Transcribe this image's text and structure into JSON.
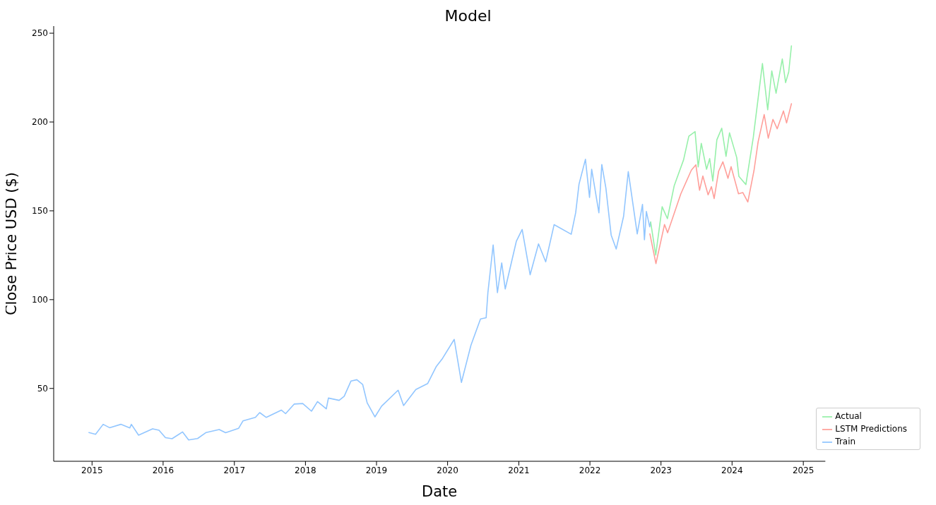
{
  "chart_data": {
    "type": "line",
    "title": "Model",
    "xlabel": "Date",
    "ylabel": "Close Price USD ($)",
    "xlim": [
      "2014-06-18",
      "2025-04-24"
    ],
    "ylim": [
      9,
      254
    ],
    "xticks": [
      "2015",
      "2016",
      "2017",
      "2018",
      "2019",
      "2020",
      "2021",
      "2022",
      "2023",
      "2024",
      "2025"
    ],
    "yticks": [
      50,
      100,
      150,
      200,
      250
    ],
    "grid": false,
    "legend": "bottom right",
    "marker": "none",
    "line_style": "solid",
    "series": [
      {
        "name": "Train",
        "color": "#92c6ff",
        "x": [
          "2014-12-16",
          "2015-01-19",
          "2015-02-27",
          "2015-04-01",
          "2015-05-29",
          "2015-07-14",
          "2015-07-22",
          "2015-08-28",
          "2015-11-08",
          "2015-12-11",
          "2016-01-13",
          "2016-02-16",
          "2016-04-10",
          "2016-05-11",
          "2016-06-26",
          "2016-08-09",
          "2016-10-15",
          "2016-11-17",
          "2017-01-23",
          "2017-02-14",
          "2017-04-19",
          "2017-05-11",
          "2017-06-14",
          "2017-08-30",
          "2017-09-21",
          "2017-11-04",
          "2017-12-18",
          "2018-02-01",
          "2018-03-04",
          "2018-04-18",
          "2018-04-29",
          "2018-06-23",
          "2018-07-19",
          "2018-08-23",
          "2018-09-22",
          "2018-10-22",
          "2018-11-14",
          "2018-12-24",
          "2019-01-27",
          "2019-04-22",
          "2019-05-20",
          "2019-07-22",
          "2019-09-21",
          "2019-11-03",
          "2019-12-06",
          "2020-02-04",
          "2020-03-12",
          "2020-04-30",
          "2020-06-18",
          "2020-07-17",
          "2020-07-26",
          "2020-08-22",
          "2020-09-13",
          "2020-10-05",
          "2020-10-23",
          "2020-12-19",
          "2021-01-18",
          "2021-02-28",
          "2021-04-12",
          "2021-05-19",
          "2021-07-01",
          "2021-09-27",
          "2021-10-20",
          "2021-11-06",
          "2021-12-09",
          "2021-12-30",
          "2022-01-10",
          "2022-02-16",
          "2022-03-03",
          "2022-03-24",
          "2022-04-20",
          "2022-05-16",
          "2022-06-23",
          "2022-07-17",
          "2022-09-01",
          "2022-09-28",
          "2022-10-08",
          "2022-10-18",
          "2022-11-04",
          "2022-11-09"
        ],
        "values": [
          25.2,
          24.2,
          29.8,
          27.9,
          29.8,
          27.8,
          29.8,
          23.7,
          27.3,
          26.5,
          22.3,
          21.7,
          25.5,
          21.0,
          21.8,
          25.2,
          26.9,
          25.1,
          27.6,
          31.7,
          33.7,
          36.4,
          33.7,
          37.8,
          35.8,
          41.2,
          41.5,
          37.2,
          42.6,
          38.5,
          44.6,
          43.3,
          45.6,
          54.2,
          54.9,
          52.2,
          41.9,
          34.0,
          40.0,
          49.0,
          40.4,
          49.4,
          52.8,
          62.2,
          66.9,
          77.6,
          53.4,
          74.3,
          89.1,
          89.8,
          103.9,
          130.8,
          103.9,
          120.7,
          106.0,
          132.8,
          139.5,
          114.0,
          131.4,
          121.3,
          142.2,
          136.8,
          149.0,
          165.0,
          179.0,
          157.5,
          173.4,
          148.9,
          176.1,
          162.8,
          136.4,
          128.5,
          147.0,
          172.1,
          137.0,
          153.6,
          133.7,
          149.6,
          141.0,
          143.7
        ]
      },
      {
        "name": "Actual",
        "color": "#97f0aa",
        "x": [
          "2022-11-09",
          "2022-12-05",
          "2023-01-07",
          "2023-02-03",
          "2023-03-10",
          "2023-04-27",
          "2023-05-24",
          "2023-06-25",
          "2023-07-11",
          "2023-07-27",
          "2023-08-23",
          "2023-09-08",
          "2023-09-24",
          "2023-10-15",
          "2023-11-09",
          "2023-12-01",
          "2023-12-19",
          "2024-01-25",
          "2024-02-05",
          "2024-03-12",
          "2024-04-19",
          "2024-06-05",
          "2024-07-02",
          "2024-07-23",
          "2024-08-14",
          "2024-09-15",
          "2024-10-02",
          "2024-10-18",
          "2024-11-01"
        ],
        "values": [
          143.7,
          125.1,
          152.3,
          145.6,
          164.2,
          178.7,
          192.0,
          194.6,
          174.7,
          188.0,
          173.4,
          179.4,
          166.8,
          190.0,
          196.5,
          180.7,
          193.9,
          180.0,
          169.4,
          164.8,
          191.3,
          232.9,
          206.9,
          228.8,
          216.2,
          235.5,
          222.2,
          228.2,
          242.9
        ]
      },
      {
        "name": "LSTM Predictions",
        "color": "#ff9f9a",
        "x": [
          "2022-11-05",
          "2022-12-06",
          "2023-01-19",
          "2023-02-04",
          "2023-04-13",
          "2023-06-06",
          "2023-06-29",
          "2023-07-18",
          "2023-08-04",
          "2023-08-31",
          "2023-09-17",
          "2023-10-01",
          "2023-10-24",
          "2023-11-15",
          "2023-12-11",
          "2023-12-27",
          "2024-02-03",
          "2024-02-25",
          "2024-03-22",
          "2024-04-23",
          "2024-05-14",
          "2024-06-14",
          "2024-07-05",
          "2024-07-29",
          "2024-08-20",
          "2024-09-21",
          "2024-10-07",
          "2024-11-01"
        ],
        "values": [
          137.0,
          120.3,
          142.3,
          137.7,
          159.6,
          172.9,
          175.9,
          161.6,
          169.6,
          159.0,
          163.6,
          156.9,
          172.3,
          177.6,
          168.3,
          174.9,
          159.6,
          160.3,
          155.0,
          172.9,
          188.9,
          204.2,
          190.9,
          201.5,
          196.2,
          206.2,
          199.5,
          210.3
        ]
      }
    ]
  }
}
